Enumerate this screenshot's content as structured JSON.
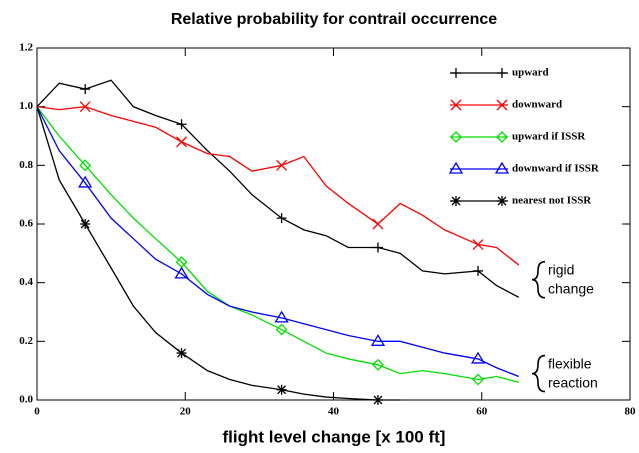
{
  "chart_data": {
    "type": "line",
    "title": "Relative probability for contrail occurrence",
    "x_label": "flight level change [x 100 ft]",
    "x": [
      0,
      3,
      6.5,
      10,
      13,
      16,
      19.5,
      23,
      26,
      29,
      33,
      36,
      39,
      42,
      46,
      49,
      52,
      55,
      59.5,
      62,
      65
    ],
    "series": [
      {
        "name": "upward",
        "color": "#000000",
        "marker": "plus",
        "values": [
          1.0,
          1.08,
          1.06,
          1.09,
          1.0,
          0.97,
          0.94,
          0.85,
          0.78,
          0.7,
          0.62,
          0.58,
          0.56,
          0.52,
          0.52,
          0.5,
          0.44,
          0.43,
          0.44,
          0.39,
          0.35
        ]
      },
      {
        "name": "downward",
        "color": "#ff0000",
        "marker": "cross",
        "values": [
          1.0,
          0.99,
          1.0,
          0.97,
          0.95,
          0.93,
          0.88,
          0.84,
          0.83,
          0.78,
          0.8,
          0.83,
          0.73,
          0.67,
          0.6,
          0.67,
          0.63,
          0.58,
          0.53,
          0.52,
          0.46
        ]
      },
      {
        "name": "upward if ISSR",
        "color": "#00e000",
        "marker": "diamond",
        "values": [
          1.0,
          0.9,
          0.8,
          0.7,
          0.62,
          0.55,
          0.47,
          0.37,
          0.32,
          0.29,
          0.24,
          0.2,
          0.16,
          0.14,
          0.12,
          0.09,
          0.1,
          0.09,
          0.07,
          0.08,
          0.06
        ]
      },
      {
        "name": "downward if ISSR",
        "color": "#0000ff",
        "marker": "triangle",
        "values": [
          1.0,
          0.85,
          0.74,
          0.62,
          0.55,
          0.48,
          0.43,
          0.36,
          0.32,
          0.3,
          0.28,
          0.26,
          0.24,
          0.22,
          0.2,
          0.2,
          0.18,
          0.16,
          0.14,
          0.11,
          0.08
        ]
      },
      {
        "name": "nearest not ISSR",
        "color": "#000000",
        "marker": "asterisk",
        "values": [
          1.0,
          0.75,
          0.6,
          0.45,
          0.32,
          0.23,
          0.16,
          0.1,
          0.07,
          0.05,
          0.035,
          0.02,
          0.01,
          0.005,
          0.0,
          0.0,
          null,
          null,
          null,
          null,
          null
        ]
      }
    ],
    "xlim": [
      0,
      80
    ],
    "xticks": [
      0,
      20,
      40,
      60,
      80
    ],
    "ylim": [
      0,
      1.2
    ],
    "yticks": [
      {
        "value": 0,
        "label": "0.0"
      },
      0.2,
      0.4,
      0.6,
      0.8,
      {
        "value": 1,
        "label": "1.0"
      },
      1.2
    ],
    "annotations": [
      {
        "lines": [
          "rigid",
          "change"
        ],
        "y": 0.41
      },
      {
        "lines": [
          "flexible",
          "reaction"
        ],
        "y": 0.09
      }
    ]
  }
}
